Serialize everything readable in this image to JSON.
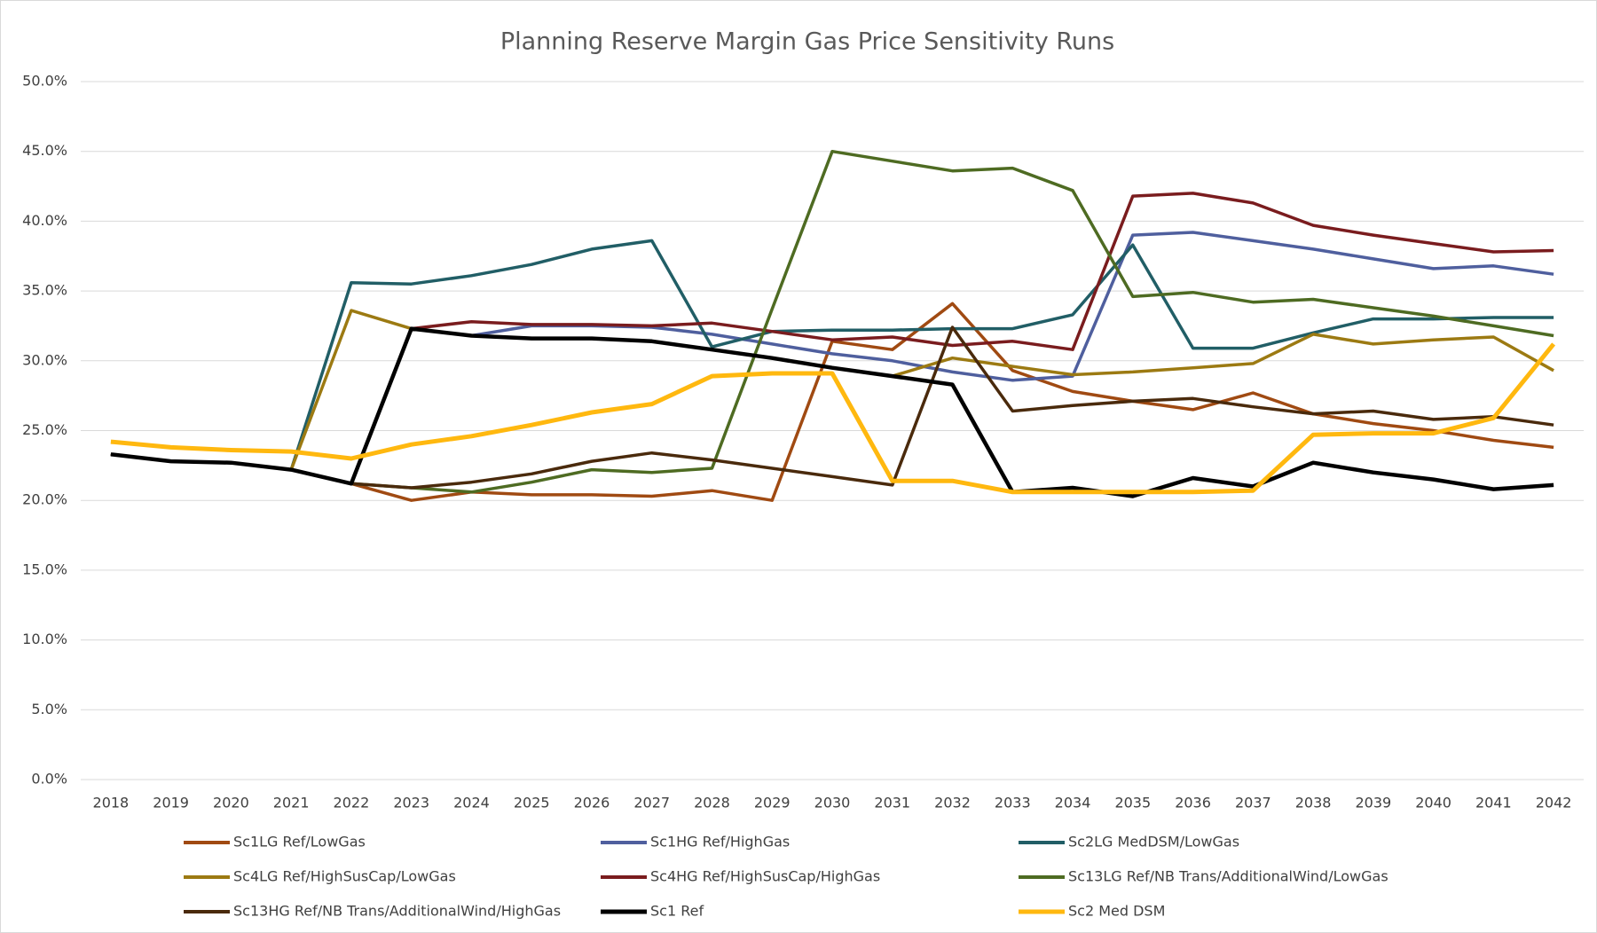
{
  "chart_data": {
    "type": "line",
    "title": "Planning Reserve Margin Gas Price Sensitivity Runs",
    "categories": [
      "2018",
      "2019",
      "2020",
      "2021",
      "2022",
      "2023",
      "2024",
      "2025",
      "2026",
      "2027",
      "2028",
      "2029",
      "2030",
      "2031",
      "2032",
      "2033",
      "2034",
      "2035",
      "2036",
      "2037",
      "2038",
      "2039",
      "2040",
      "2041",
      "2042"
    ],
    "ylim": [
      0,
      50
    ],
    "yticks": [
      {
        "value": 0,
        "label": "0.0%"
      },
      {
        "value": 5,
        "label": "5.0%"
      },
      {
        "value": 10,
        "label": "10.0%"
      },
      {
        "value": 15,
        "label": "15.0%"
      },
      {
        "value": 20,
        "label": "20.0%"
      },
      {
        "value": 25,
        "label": "25.0%"
      },
      {
        "value": 30,
        "label": "30.0%"
      },
      {
        "value": 35,
        "label": "35.0%"
      },
      {
        "value": 40,
        "label": "40.0%"
      },
      {
        "value": 45,
        "label": "45.0%"
      },
      {
        "value": 50,
        "label": "50.0%"
      }
    ],
    "grid": true,
    "legend": "bottom",
    "series": [
      {
        "name": "Sc1LG Ref/LowGas",
        "color": "#a04a12",
        "values": [
          23.3,
          22.8,
          22.7,
          22.2,
          21.2,
          20.0,
          20.6,
          20.4,
          20.4,
          20.3,
          20.7,
          20.0,
          31.4,
          30.8,
          34.1,
          29.3,
          27.8,
          27.1,
          26.5,
          27.7,
          26.2,
          25.5,
          25.0,
          24.3,
          23.8
        ]
      },
      {
        "name": "Sc1HG Ref/HighGas",
        "color": "#4f5f9e",
        "values": [
          23.3,
          22.8,
          22.7,
          22.2,
          21.2,
          32.3,
          31.8,
          32.5,
          32.5,
          32.4,
          31.9,
          31.2,
          30.5,
          30.0,
          29.2,
          28.6,
          28.9,
          39.0,
          39.2,
          38.6,
          38.0,
          37.3,
          36.6,
          36.8,
          36.2
        ]
      },
      {
        "name": "Sc2LG MedDSM/LowGas",
        "color": "#215e66",
        "values": [
          23.3,
          22.8,
          22.7,
          22.2,
          35.6,
          35.5,
          36.1,
          36.9,
          38.0,
          38.6,
          31.0,
          32.1,
          32.2,
          32.2,
          32.3,
          32.3,
          33.3,
          38.3,
          30.9,
          30.9,
          32.0,
          33.0,
          33.0,
          33.1,
          33.1
        ]
      },
      {
        "name": "Sc4LG Ref/HighSusCap/LowGas",
        "color": "#9c7a12",
        "values": [
          23.3,
          22.8,
          22.7,
          22.2,
          33.6,
          32.3,
          31.8,
          31.6,
          31.6,
          31.4,
          30.8,
          30.2,
          29.5,
          28.9,
          30.2,
          29.6,
          29.0,
          29.2,
          29.5,
          29.8,
          31.9,
          31.2,
          31.5,
          31.7,
          29.3
        ]
      },
      {
        "name": "Sc4HG Ref/HighSusCap/HighGas",
        "color": "#7a1c1e",
        "values": [
          23.3,
          22.8,
          22.7,
          22.2,
          21.2,
          32.3,
          32.8,
          32.6,
          32.6,
          32.5,
          32.7,
          32.1,
          31.5,
          31.7,
          31.1,
          31.4,
          30.8,
          41.8,
          42.0,
          41.3,
          39.7,
          39.0,
          38.4,
          37.8,
          37.9
        ]
      },
      {
        "name": "Sc13LG Ref/NB Trans/AdditionalWind/LowGas",
        "color": "#4e6b22",
        "values": [
          23.3,
          22.8,
          22.7,
          22.2,
          21.2,
          20.9,
          20.6,
          21.3,
          22.2,
          22.0,
          22.3,
          33.7,
          45.0,
          44.3,
          43.6,
          43.8,
          42.2,
          34.6,
          34.9,
          34.2,
          34.4,
          33.8,
          33.2,
          32.5,
          31.8
        ]
      },
      {
        "name": "Sc13HG Ref/NB Trans/AdditionalWind/HighGas",
        "color": "#4a2a0c",
        "values": [
          23.3,
          22.8,
          22.7,
          22.2,
          21.2,
          20.9,
          21.3,
          21.9,
          22.8,
          23.4,
          22.9,
          22.3,
          21.7,
          21.1,
          32.4,
          26.4,
          26.8,
          27.1,
          27.3,
          26.7,
          26.2,
          26.4,
          25.8,
          26.0,
          25.4
        ]
      },
      {
        "name": "Sc1 Ref",
        "color": "#000000",
        "values": [
          23.3,
          22.8,
          22.7,
          22.2,
          21.2,
          32.3,
          31.8,
          31.6,
          31.6,
          31.4,
          30.8,
          30.2,
          29.5,
          28.9,
          28.3,
          20.6,
          20.9,
          20.3,
          21.6,
          21.0,
          22.7,
          22.0,
          21.5,
          20.8,
          21.1
        ]
      },
      {
        "name": "Sc2 Med DSM",
        "color": "#ffb80f",
        "values": [
          24.2,
          23.8,
          23.6,
          23.5,
          23.0,
          24.0,
          24.6,
          25.4,
          26.3,
          26.9,
          28.9,
          29.1,
          29.1,
          21.4,
          21.4,
          20.6,
          20.6,
          20.6,
          20.6,
          20.7,
          24.7,
          24.8,
          24.8,
          25.9,
          31.2
        ]
      }
    ]
  }
}
